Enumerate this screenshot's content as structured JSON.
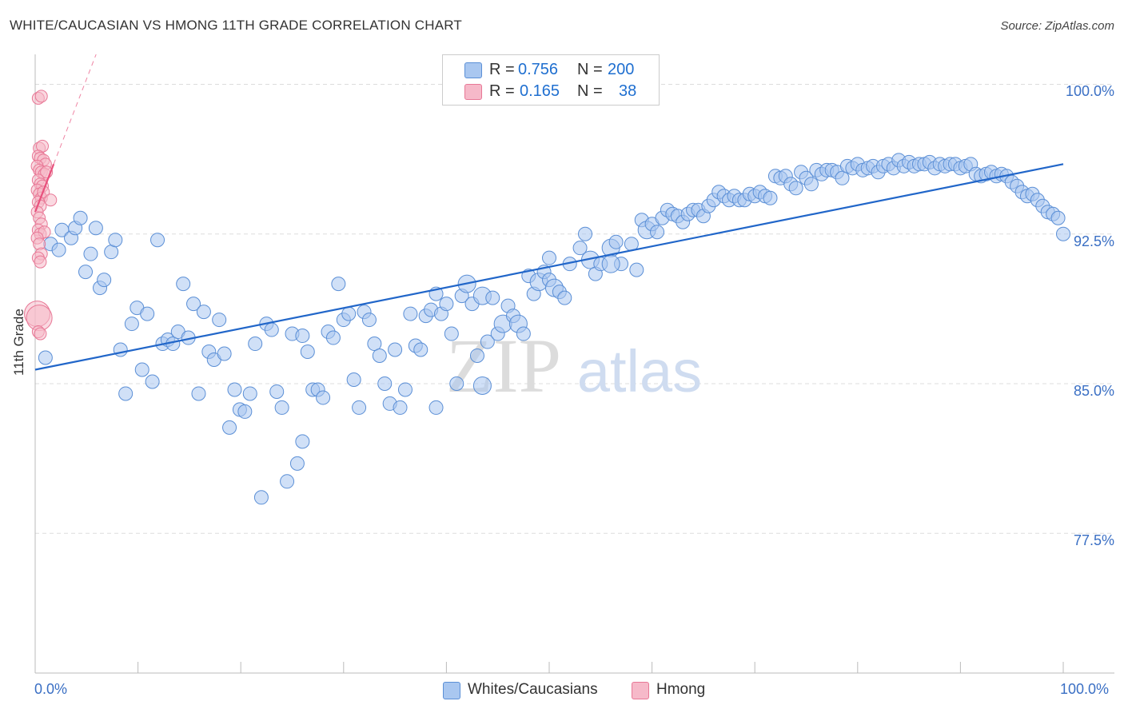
{
  "title": "WHITE/CAUCASIAN VS HMONG 11TH GRADE CORRELATION CHART",
  "source": "Source: ZipAtlas.com",
  "watermark": {
    "zip": "ZIP",
    "atlas": "atlas"
  },
  "legend": {
    "rows": [
      {
        "r_label": "R =",
        "r_value": "0.756",
        "n_label": "N =",
        "n_value": "200"
      },
      {
        "r_label": "R =",
        "r_value": "0.165",
        "n_label": "N =",
        "n_value": "38"
      }
    ]
  },
  "bottom_legend": {
    "whites": "Whites/Caucasians",
    "hmong": "Hmong"
  },
  "colors": {
    "whites_fill": "#a9c7f0",
    "whites_stroke": "#5b8fd6",
    "whites_line": "#2166c9",
    "hmong_fill": "#f6b9c9",
    "hmong_stroke": "#e87896",
    "hmong_line": "#e8517d",
    "grid": "#dddddd",
    "axis_label": "#3a6fc4"
  },
  "chart_data": {
    "type": "scatter",
    "title": "WHITE/CAUCASIAN VS HMONG 11TH GRADE CORRELATION CHART",
    "xlabel": "",
    "ylabel": "11th Grade",
    "xlim": [
      0,
      100
    ],
    "ylim": [
      70.5,
      101.5
    ],
    "x_tick_labels": [
      "0.0%",
      "100.0%"
    ],
    "y_ticks": [
      77.5,
      85.0,
      92.5,
      100.0
    ],
    "y_tick_labels": [
      "77.5%",
      "85.0%",
      "92.5%",
      "100.0%"
    ],
    "grid": true,
    "legend_position": "top-center",
    "series": [
      {
        "name": "Whites/Caucasians",
        "r": 0.756,
        "n": 200,
        "trend": {
          "x": [
            0,
            100
          ],
          "y": [
            85.7,
            96.0
          ]
        },
        "points": [
          [
            1.0,
            86.3
          ],
          [
            1.5,
            92.0
          ],
          [
            2.3,
            91.7
          ],
          [
            2.6,
            92.7
          ],
          [
            3.5,
            92.3
          ],
          [
            3.9,
            92.8
          ],
          [
            4.4,
            93.3
          ],
          [
            4.9,
            90.6
          ],
          [
            5.4,
            91.5
          ],
          [
            5.9,
            92.8
          ],
          [
            6.3,
            89.8
          ],
          [
            6.7,
            90.2
          ],
          [
            7.4,
            91.6
          ],
          [
            7.8,
            92.2
          ],
          [
            8.3,
            86.7
          ],
          [
            8.8,
            84.5
          ],
          [
            9.4,
            88.0
          ],
          [
            9.9,
            88.8
          ],
          [
            10.4,
            85.7
          ],
          [
            10.9,
            88.5
          ],
          [
            11.4,
            85.1
          ],
          [
            11.9,
            92.2
          ],
          [
            12.4,
            87.0
          ],
          [
            12.9,
            87.2
          ],
          [
            13.4,
            87.0
          ],
          [
            13.9,
            87.6
          ],
          [
            14.4,
            90.0
          ],
          [
            14.9,
            87.3
          ],
          [
            15.4,
            89.0
          ],
          [
            15.9,
            84.5
          ],
          [
            16.4,
            88.6
          ],
          [
            16.9,
            86.6
          ],
          [
            17.4,
            86.2
          ],
          [
            17.9,
            88.2
          ],
          [
            18.4,
            86.5
          ],
          [
            18.9,
            82.8
          ],
          [
            19.4,
            84.7
          ],
          [
            19.9,
            83.7
          ],
          [
            20.4,
            83.6
          ],
          [
            20.9,
            84.5
          ],
          [
            21.4,
            87.0
          ],
          [
            22.0,
            79.3
          ],
          [
            22.5,
            88.0
          ],
          [
            23.0,
            87.7
          ],
          [
            23.5,
            84.6
          ],
          [
            24.0,
            83.8
          ],
          [
            24.5,
            80.1
          ],
          [
            25.0,
            87.5
          ],
          [
            25.5,
            81.0
          ],
          [
            26.0,
            87.4
          ],
          [
            26.5,
            86.6
          ],
          [
            27.0,
            84.7
          ],
          [
            27.5,
            84.7
          ],
          [
            28.0,
            84.3
          ],
          [
            28.5,
            87.6
          ],
          [
            29.0,
            87.3
          ],
          [
            29.5,
            90.0
          ],
          [
            30.0,
            88.2
          ],
          [
            30.5,
            88.5
          ],
          [
            31.0,
            85.2
          ],
          [
            31.5,
            83.8
          ],
          [
            32.0,
            88.6
          ],
          [
            32.5,
            88.2
          ],
          [
            33.0,
            87.0
          ],
          [
            33.5,
            86.4
          ],
          [
            34.0,
            85.0
          ],
          [
            34.5,
            84.0
          ],
          [
            35.0,
            86.7
          ],
          [
            35.5,
            83.8
          ],
          [
            36.0,
            84.7
          ],
          [
            36.5,
            88.5
          ],
          [
            37.0,
            86.9
          ],
          [
            37.5,
            86.7
          ],
          [
            38.0,
            88.4
          ],
          [
            38.5,
            88.7
          ],
          [
            39.0,
            89.5
          ],
          [
            39.5,
            88.5
          ],
          [
            40.0,
            89.0
          ],
          [
            40.5,
            87.5
          ],
          [
            41.0,
            85.0
          ],
          [
            41.5,
            89.4
          ],
          [
            42.0,
            90.0
          ],
          [
            42.5,
            89.0
          ],
          [
            43.0,
            86.4
          ],
          [
            43.5,
            89.4
          ],
          [
            44.0,
            87.1
          ],
          [
            44.5,
            89.3
          ],
          [
            45.0,
            87.5
          ],
          [
            45.5,
            88.0
          ],
          [
            46.0,
            88.9
          ],
          [
            46.5,
            88.4
          ],
          [
            47.0,
            88.0
          ],
          [
            47.5,
            87.5
          ],
          [
            48.0,
            90.4
          ],
          [
            48.5,
            89.5
          ],
          [
            49.0,
            90.1
          ],
          [
            49.5,
            90.6
          ],
          [
            50.0,
            90.2
          ],
          [
            50.5,
            89.8
          ],
          [
            51.0,
            89.6
          ],
          [
            51.5,
            89.3
          ],
          [
            52.0,
            91.0
          ],
          [
            53.0,
            91.8
          ],
          [
            53.5,
            92.5
          ],
          [
            54.0,
            91.2
          ],
          [
            54.5,
            90.5
          ],
          [
            55.0,
            91.0
          ],
          [
            56.0,
            91.8
          ],
          [
            56.5,
            92.1
          ],
          [
            57.0,
            91.0
          ],
          [
            58.0,
            92.0
          ],
          [
            59.0,
            93.2
          ],
          [
            59.5,
            92.7
          ],
          [
            60.0,
            93.0
          ],
          [
            60.5,
            92.6
          ],
          [
            61.0,
            93.3
          ],
          [
            61.5,
            93.7
          ],
          [
            62.0,
            93.5
          ],
          [
            62.5,
            93.4
          ],
          [
            63.0,
            93.1
          ],
          [
            63.5,
            93.5
          ],
          [
            64.0,
            93.7
          ],
          [
            64.5,
            93.7
          ],
          [
            65.0,
            93.4
          ],
          [
            65.5,
            93.9
          ],
          [
            66.0,
            94.2
          ],
          [
            66.5,
            94.6
          ],
          [
            67.0,
            94.4
          ],
          [
            67.5,
            94.2
          ],
          [
            68.0,
            94.4
          ],
          [
            68.5,
            94.2
          ],
          [
            69.0,
            94.2
          ],
          [
            69.5,
            94.5
          ],
          [
            70.0,
            94.4
          ],
          [
            70.5,
            94.6
          ],
          [
            71.0,
            94.4
          ],
          [
            71.5,
            94.3
          ],
          [
            72.0,
            95.4
          ],
          [
            72.5,
            95.3
          ],
          [
            73.0,
            95.4
          ],
          [
            73.5,
            95.0
          ],
          [
            74.0,
            94.8
          ],
          [
            74.5,
            95.6
          ],
          [
            75.0,
            95.3
          ],
          [
            75.5,
            95.0
          ],
          [
            76.0,
            95.7
          ],
          [
            76.5,
            95.5
          ],
          [
            77.0,
            95.7
          ],
          [
            77.5,
            95.7
          ],
          [
            78.0,
            95.6
          ],
          [
            78.5,
            95.3
          ],
          [
            79.0,
            95.9
          ],
          [
            79.5,
            95.8
          ],
          [
            80.0,
            96.0
          ],
          [
            80.5,
            95.7
          ],
          [
            81.0,
            95.8
          ],
          [
            81.5,
            95.9
          ],
          [
            82.0,
            95.6
          ],
          [
            82.5,
            95.9
          ],
          [
            83.0,
            96.0
          ],
          [
            83.5,
            95.8
          ],
          [
            84.0,
            96.2
          ],
          [
            84.5,
            95.9
          ],
          [
            85.0,
            96.1
          ],
          [
            85.5,
            95.9
          ],
          [
            86.0,
            96.0
          ],
          [
            86.5,
            96.0
          ],
          [
            87.0,
            96.1
          ],
          [
            87.5,
            95.8
          ],
          [
            88.0,
            96.0
          ],
          [
            88.5,
            95.9
          ],
          [
            89.0,
            96.0
          ],
          [
            89.5,
            96.0
          ],
          [
            90.0,
            95.8
          ],
          [
            90.5,
            95.9
          ],
          [
            91.0,
            96.0
          ],
          [
            91.5,
            95.5
          ],
          [
            92.0,
            95.4
          ],
          [
            92.5,
            95.5
          ],
          [
            93.0,
            95.6
          ],
          [
            93.5,
            95.4
          ],
          [
            94.0,
            95.5
          ],
          [
            94.5,
            95.4
          ],
          [
            95.0,
            95.1
          ],
          [
            95.5,
            94.9
          ],
          [
            96.0,
            94.6
          ],
          [
            96.5,
            94.4
          ],
          [
            97.0,
            94.5
          ],
          [
            97.5,
            94.2
          ],
          [
            98.0,
            93.9
          ],
          [
            98.5,
            93.6
          ],
          [
            99.0,
            93.5
          ],
          [
            99.5,
            93.3
          ],
          [
            100.0,
            92.5
          ],
          [
            56.0,
            91.0
          ],
          [
            58.5,
            90.7
          ],
          [
            43.5,
            84.9
          ],
          [
            26.0,
            82.1
          ],
          [
            39.0,
            83.8
          ],
          [
            50.0,
            91.3
          ]
        ]
      },
      {
        "name": "Hmong",
        "r": 0.165,
        "n": 38,
        "trend": {
          "x": [
            0,
            1.8
          ],
          "y": [
            93.6,
            96.0
          ]
        },
        "points": [
          [
            0.3,
            99.3
          ],
          [
            0.6,
            99.4
          ],
          [
            0.4,
            96.8
          ],
          [
            0.7,
            96.9
          ],
          [
            0.3,
            96.4
          ],
          [
            0.5,
            96.3
          ],
          [
            0.8,
            96.2
          ],
          [
            1.0,
            96.0
          ],
          [
            0.2,
            95.9
          ],
          [
            0.4,
            95.7
          ],
          [
            0.6,
            95.6
          ],
          [
            0.9,
            95.5
          ],
          [
            1.1,
            95.6
          ],
          [
            0.3,
            95.2
          ],
          [
            0.5,
            95.0
          ],
          [
            0.7,
            94.9
          ],
          [
            0.2,
            94.7
          ],
          [
            0.4,
            94.5
          ],
          [
            0.6,
            94.3
          ],
          [
            0.8,
            94.6
          ],
          [
            0.3,
            94.1
          ],
          [
            0.5,
            93.9
          ],
          [
            1.5,
            94.2
          ],
          [
            0.2,
            93.6
          ],
          [
            0.4,
            93.3
          ],
          [
            0.6,
            93.0
          ],
          [
            0.3,
            92.7
          ],
          [
            0.5,
            92.5
          ],
          [
            0.9,
            92.6
          ],
          [
            0.2,
            92.3
          ],
          [
            0.4,
            92.0
          ],
          [
            0.6,
            91.5
          ],
          [
            0.3,
            91.3
          ],
          [
            0.5,
            91.1
          ],
          [
            0.2,
            88.5
          ],
          [
            0.4,
            88.3
          ],
          [
            0.3,
            87.6
          ],
          [
            0.5,
            87.5
          ]
        ]
      }
    ]
  }
}
